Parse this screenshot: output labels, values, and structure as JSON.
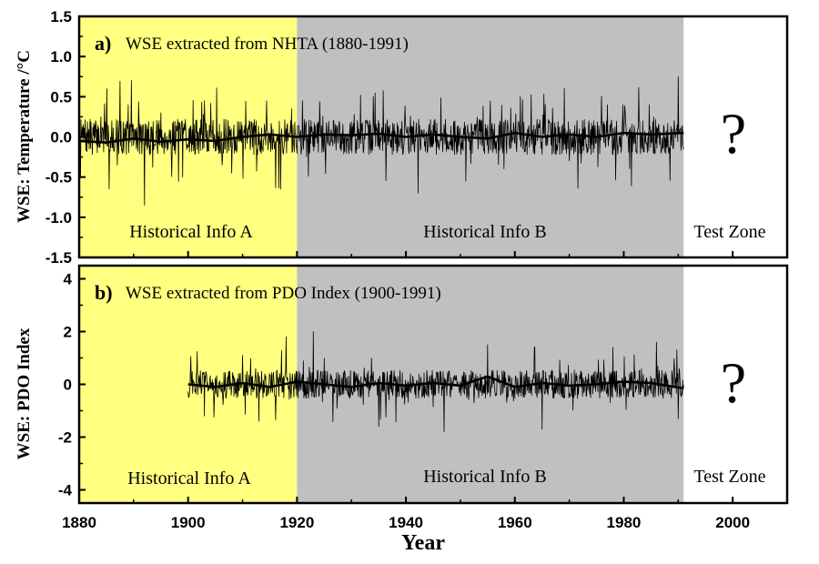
{
  "chart_data": [
    {
      "type": "line",
      "panel_letter": "a)",
      "title": "WSE extracted from NHTA (1880-1991)",
      "ylabel": "WSE: Temperature /°C",
      "xlim": [
        1880,
        2010
      ],
      "ylim": [
        -1.5,
        1.5
      ],
      "yticks": [
        "1.5",
        "1.0",
        "0.5",
        "0.0",
        "-0.5",
        "-1.0",
        "-1.5"
      ],
      "regions": [
        {
          "label": "Historical Info A",
          "x_start": 1880,
          "x_end": 1920,
          "color": "#ffff80"
        },
        {
          "label": "Historical Info B",
          "x_start": 1920,
          "x_end": 1991,
          "color": "#c0c0c0"
        },
        {
          "label": "Test Zone",
          "x_start": 1991,
          "x_end": 2010,
          "color": "#ffffff"
        }
      ],
      "unknown_marker": "?",
      "series": [
        {
          "style": "thin-monthly",
          "x_start": 1880,
          "x_end": 1991,
          "approx_range": [
            -0.85,
            0.75
          ],
          "peaks": [
            {
              "x": 1884,
              "y": 0.25
            },
            {
              "x": 1887,
              "y": -0.35
            },
            {
              "x": 1889,
              "y": 0.4
            },
            {
              "x": 1892,
              "y": -0.85
            },
            {
              "x": 1895,
              "y": 0.3
            },
            {
              "x": 1899,
              "y": -0.5
            },
            {
              "x": 1903,
              "y": 0.45
            },
            {
              "x": 1908,
              "y": -0.45
            },
            {
              "x": 1917,
              "y": -0.65
            },
            {
              "x": 1919,
              "y": 0.35
            },
            {
              "x": 1921,
              "y": 0.45
            },
            {
              "x": 1934,
              "y": 0.5
            },
            {
              "x": 1951,
              "y": -0.55
            },
            {
              "x": 1961,
              "y": 0.5
            },
            {
              "x": 1977,
              "y": 0.4
            },
            {
              "x": 1990,
              "y": 0.75
            }
          ]
        },
        {
          "style": "thick-smoothed",
          "points": [
            {
              "x": 1880,
              "y": -0.05
            },
            {
              "x": 1885,
              "y": -0.07
            },
            {
              "x": 1890,
              "y": -0.02
            },
            {
              "x": 1895,
              "y": -0.06
            },
            {
              "x": 1900,
              "y": -0.03
            },
            {
              "x": 1905,
              "y": -0.05
            },
            {
              "x": 1910,
              "y": 0.0
            },
            {
              "x": 1915,
              "y": 0.03
            },
            {
              "x": 1920,
              "y": 0.0
            },
            {
              "x": 1925,
              "y": 0.03
            },
            {
              "x": 1930,
              "y": 0.02
            },
            {
              "x": 1935,
              "y": 0.04
            },
            {
              "x": 1940,
              "y": 0.0
            },
            {
              "x": 1945,
              "y": 0.03
            },
            {
              "x": 1950,
              "y": 0.0
            },
            {
              "x": 1955,
              "y": -0.02
            },
            {
              "x": 1960,
              "y": 0.05
            },
            {
              "x": 1965,
              "y": 0.0
            },
            {
              "x": 1970,
              "y": 0.03
            },
            {
              "x": 1975,
              "y": 0.0
            },
            {
              "x": 1980,
              "y": 0.05
            },
            {
              "x": 1985,
              "y": 0.03
            },
            {
              "x": 1991,
              "y": 0.05
            }
          ]
        }
      ]
    },
    {
      "type": "line",
      "panel_letter": "b)",
      "title": "WSE extracted from PDO Index (1900-1991)",
      "ylabel": "WSE: PDO Index",
      "xlabel": "Year",
      "xlim": [
        1880,
        2010
      ],
      "ylim": [
        -4.5,
        4.5
      ],
      "xticks": [
        "1880",
        "1900",
        "1920",
        "1940",
        "1960",
        "1980",
        "2000"
      ],
      "yticks": [
        "4",
        "2",
        "0",
        "-2",
        "-4"
      ],
      "regions": [
        {
          "label": "Historical Info A",
          "x_start": 1880,
          "x_end": 1920,
          "color": "#ffff80"
        },
        {
          "label": "Historical Info B",
          "x_start": 1920,
          "x_end": 1991,
          "color": "#c0c0c0"
        },
        {
          "label": "Test Zone",
          "x_start": 1991,
          "x_end": 2010,
          "color": "#ffffff"
        }
      ],
      "unknown_marker": "?",
      "series": [
        {
          "style": "thin-monthly",
          "x_start": 1900,
          "x_end": 1991,
          "approx_range": [
            -1.9,
            2.0
          ],
          "peaks": [
            {
              "x": 1903,
              "y": -1.2
            },
            {
              "x": 1910,
              "y": 1.1
            },
            {
              "x": 1913,
              "y": -1.4
            },
            {
              "x": 1918,
              "y": 1.8
            },
            {
              "x": 1923,
              "y": 2.0
            },
            {
              "x": 1935,
              "y": -1.6
            },
            {
              "x": 1947,
              "y": -1.8
            },
            {
              "x": 1955,
              "y": 1.5
            },
            {
              "x": 1965,
              "y": -1.7
            },
            {
              "x": 1978,
              "y": 1.4
            },
            {
              "x": 1986,
              "y": 1.6
            },
            {
              "x": 1990,
              "y": -1.3
            }
          ]
        },
        {
          "style": "thick-smoothed",
          "points": [
            {
              "x": 1900,
              "y": 0.0
            },
            {
              "x": 1905,
              "y": -0.1
            },
            {
              "x": 1910,
              "y": 0.05
            },
            {
              "x": 1915,
              "y": -0.1
            },
            {
              "x": 1920,
              "y": 0.1
            },
            {
              "x": 1925,
              "y": 0.0
            },
            {
              "x": 1930,
              "y": -0.1
            },
            {
              "x": 1935,
              "y": 0.05
            },
            {
              "x": 1940,
              "y": -0.05
            },
            {
              "x": 1945,
              "y": 0.05
            },
            {
              "x": 1950,
              "y": -0.05
            },
            {
              "x": 1955,
              "y": 0.3
            },
            {
              "x": 1960,
              "y": -0.1
            },
            {
              "x": 1965,
              "y": 0.05
            },
            {
              "x": 1970,
              "y": -0.05
            },
            {
              "x": 1975,
              "y": 0.0
            },
            {
              "x": 1980,
              "y": 0.1
            },
            {
              "x": 1985,
              "y": 0.05
            },
            {
              "x": 1991,
              "y": -0.15
            }
          ]
        }
      ]
    }
  ]
}
